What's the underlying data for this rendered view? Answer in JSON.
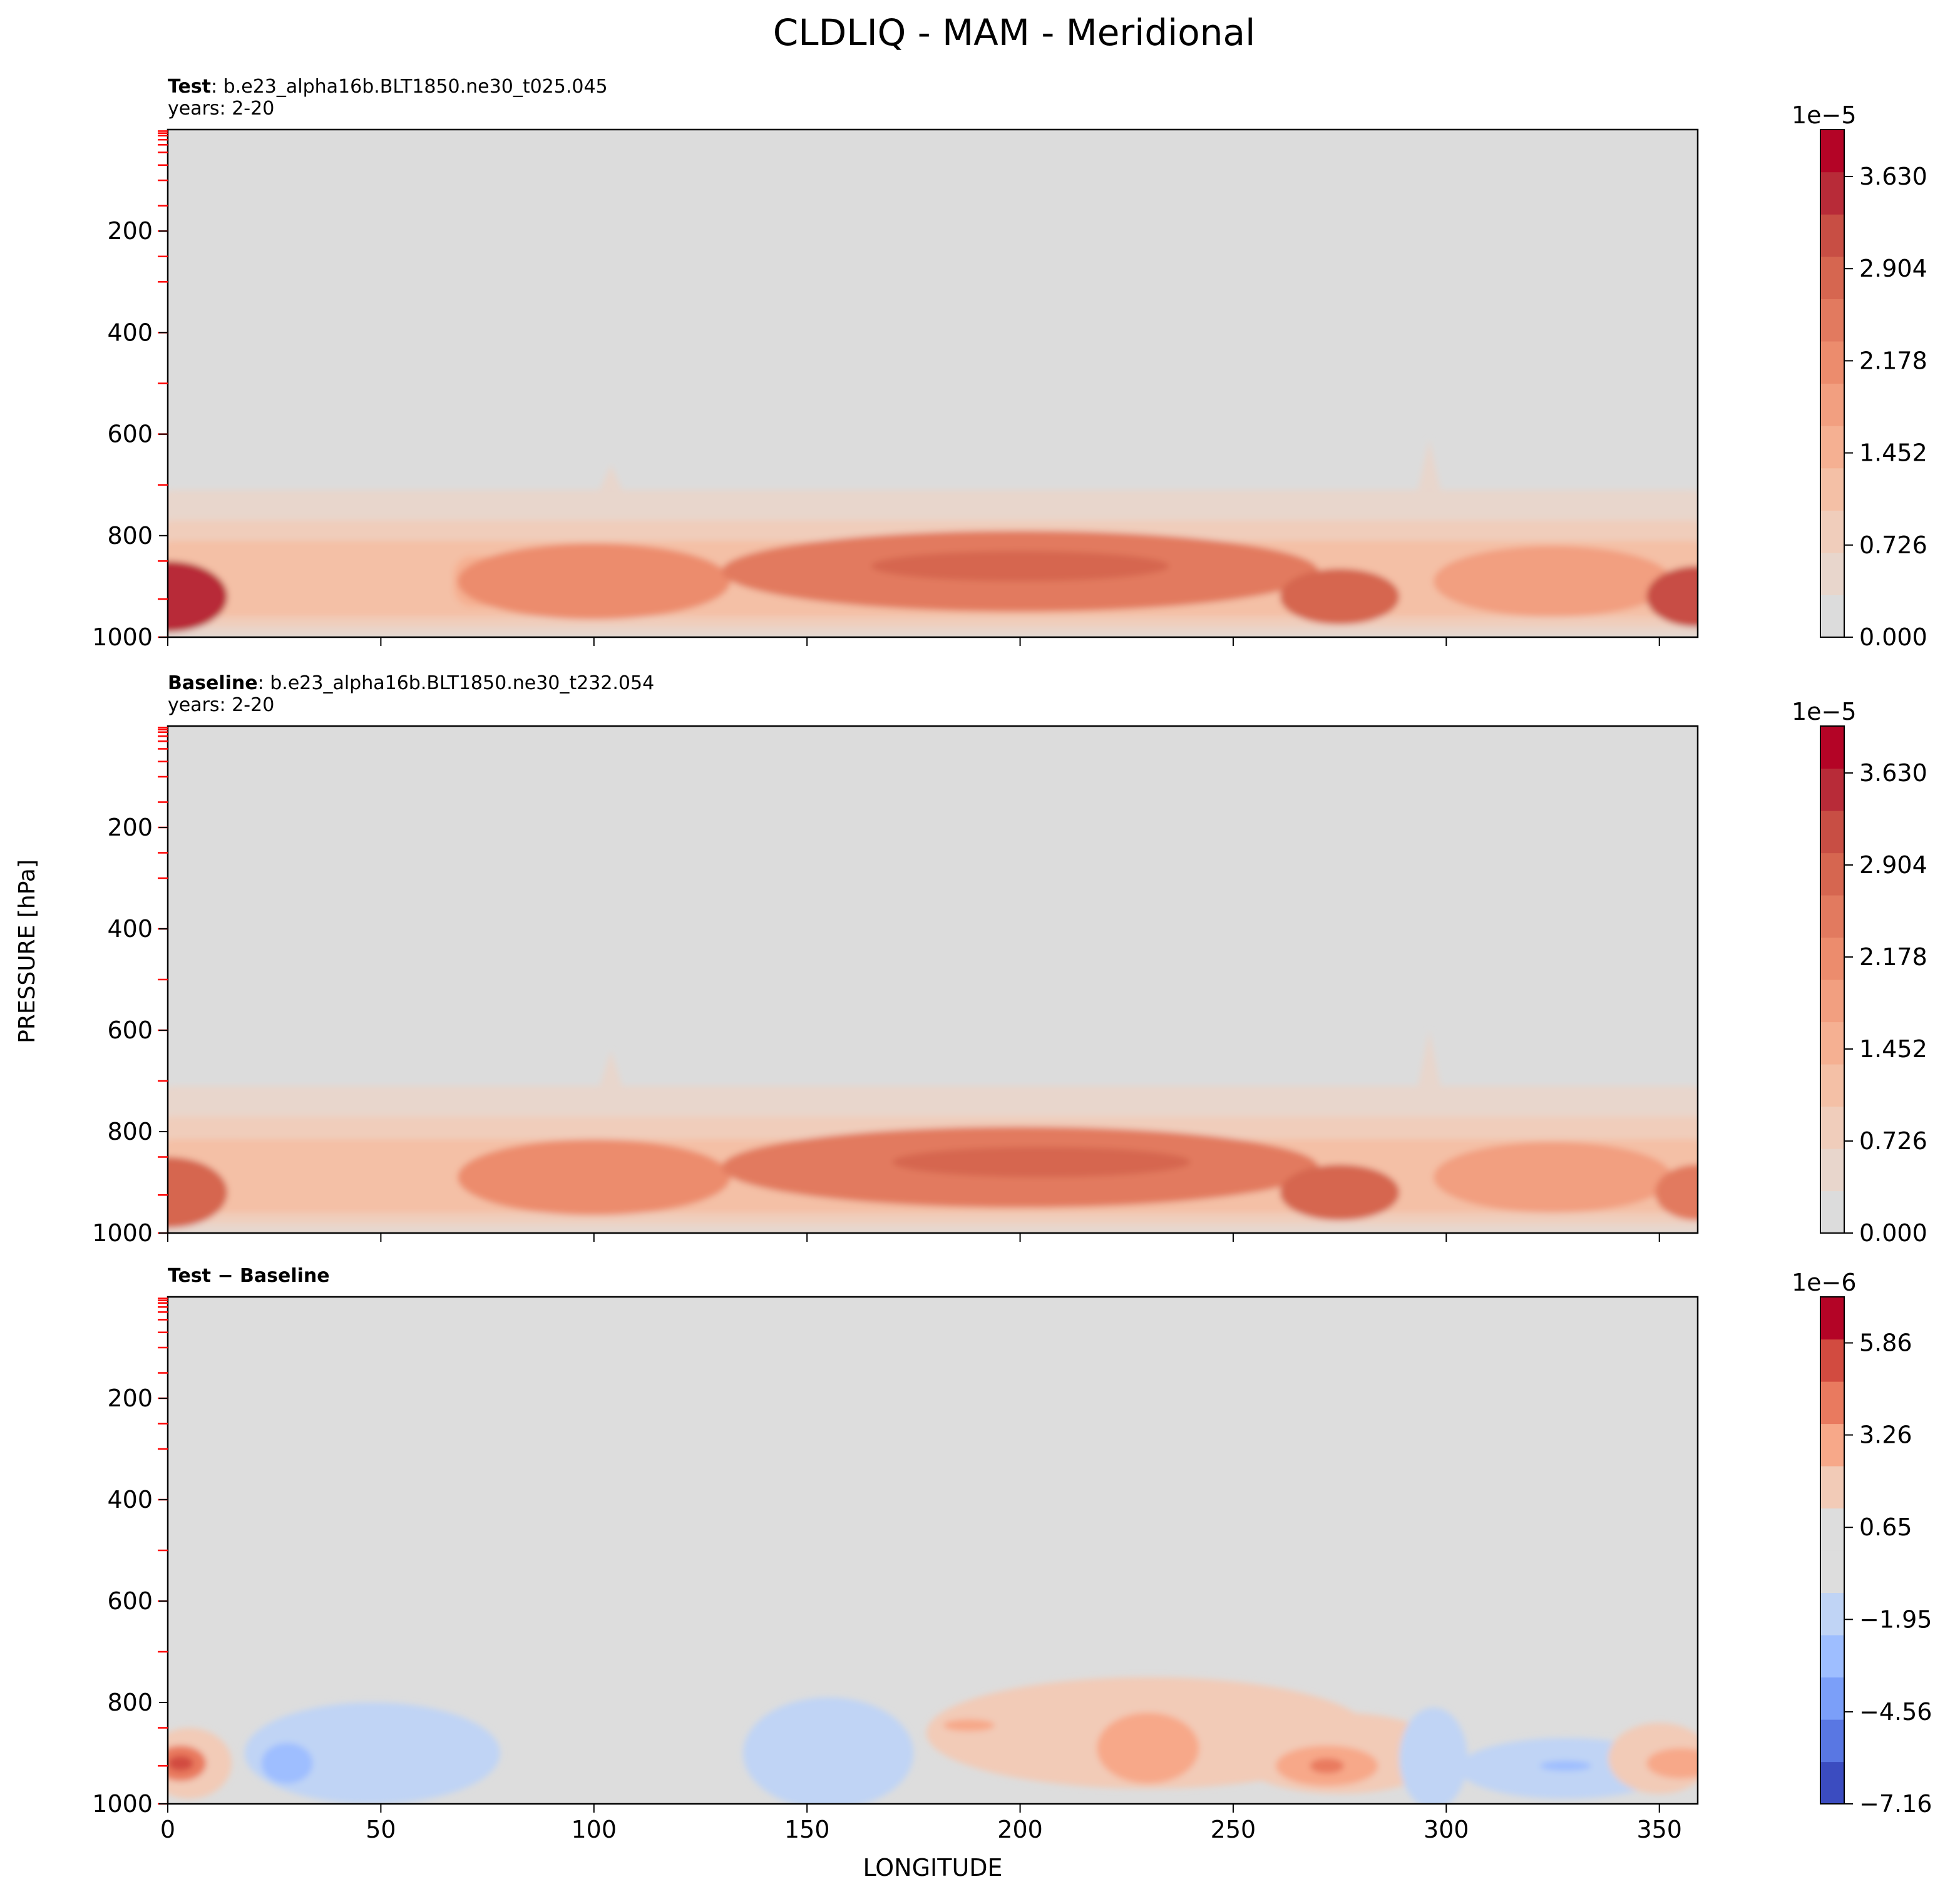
{
  "figure": {
    "title": "CLDLIQ - MAM - Meridional",
    "ylabel": "PRESSURE [hPa]",
    "xlabel": "LONGITUDE"
  },
  "chart_data": [
    {
      "type": "heatmap",
      "panel": "test",
      "title_bold": "Test",
      "title_rest": ": b.e23_alpha16b.BLT1850.ne30_t025.045",
      "subtitle": "years: 2-20",
      "xlim": [
        0,
        359
      ],
      "ylim": [
        1000,
        0
      ],
      "xticks": [
        0,
        50,
        100,
        150,
        200,
        250,
        300,
        350
      ],
      "yticks": [
        200,
        400,
        600,
        800,
        1000
      ],
      "colorbar": {
        "exponent": "1e−5",
        "vmin": 0.0,
        "vmax": 4.0,
        "ticks": [
          0.0,
          0.726,
          1.452,
          2.178,
          2.904,
          3.63
        ],
        "tick_labels": [
          "0.000",
          "0.726",
          "1.452",
          "2.178",
          "2.904",
          "3.630"
        ],
        "colors": [
          "#dcdcdc",
          "#e8d6cc",
          "#f0cdbb",
          "#f4c0a6",
          "#f5b092",
          "#f29f80",
          "#ec8c6d",
          "#e27a5f",
          "#d66650",
          "#c84e44",
          "#b82b38",
          "#b40426"
        ]
      },
      "field": {
        "bands": [
          {
            "lon": [
              0,
              359
            ],
            "p": [
              710,
              1000
            ],
            "level": 1
          },
          {
            "lon": [
              0,
              359
            ],
            "p": [
              770,
              980
            ],
            "level": 2
          },
          {
            "lon": [
              0,
              359
            ],
            "p": [
              810,
              960
            ],
            "level": 3
          },
          {
            "lon": [
              70,
              88
            ],
            "p": [
              840,
              940
            ],
            "level": 4
          }
        ],
        "blobs": [
          {
            "lon": 0,
            "p": 920,
            "rlon": 14,
            "rp": 70,
            "level": 10
          },
          {
            "lon": 100,
            "p": 890,
            "rlon": 32,
            "rp": 75,
            "level": 6
          },
          {
            "lon": 200,
            "p": 870,
            "rlon": 70,
            "rp": 80,
            "level": 7
          },
          {
            "lon": 200,
            "p": 860,
            "rlon": 35,
            "rp": 30,
            "level": 8
          },
          {
            "lon": 275,
            "p": 920,
            "rlon": 14,
            "rp": 55,
            "level": 8
          },
          {
            "lon": 325,
            "p": 890,
            "rlon": 28,
            "rp": 70,
            "level": 5
          },
          {
            "lon": 359,
            "p": 920,
            "rlon": 12,
            "rp": 60,
            "level": 9
          }
        ],
        "spikes": [
          {
            "lon": 104,
            "p_top": 660,
            "level": 1
          },
          {
            "lon": 296,
            "p_top": 610,
            "level": 1
          }
        ]
      }
    },
    {
      "type": "heatmap",
      "panel": "baseline",
      "title_bold": "Baseline",
      "title_rest": ": b.e23_alpha16b.BLT1850.ne30_t232.054",
      "subtitle": "years: 2-20",
      "xlim": [
        0,
        359
      ],
      "ylim": [
        1000,
        0
      ],
      "xticks": [
        0,
        50,
        100,
        150,
        200,
        250,
        300,
        350
      ],
      "yticks": [
        200,
        400,
        600,
        800,
        1000
      ],
      "colorbar": {
        "exponent": "1e−5",
        "vmin": 0.0,
        "vmax": 4.0,
        "ticks": [
          0.0,
          0.726,
          1.452,
          2.178,
          2.904,
          3.63
        ],
        "tick_labels": [
          "0.000",
          "0.726",
          "1.452",
          "2.178",
          "2.904",
          "3.630"
        ],
        "colors": [
          "#dcdcdc",
          "#e8d6cc",
          "#f0cdbb",
          "#f4c0a6",
          "#f5b092",
          "#f29f80",
          "#ec8c6d",
          "#e27a5f",
          "#d66650",
          "#c84e44",
          "#b82b38",
          "#b40426"
        ]
      },
      "field": {
        "bands": [
          {
            "lon": [
              0,
              359
            ],
            "p": [
              710,
              1000
            ],
            "level": 1
          },
          {
            "lon": [
              0,
              359
            ],
            "p": [
              770,
              980
            ],
            "level": 2
          },
          {
            "lon": [
              0,
              359
            ],
            "p": [
              815,
              960
            ],
            "level": 3
          }
        ],
        "blobs": [
          {
            "lon": 0,
            "p": 920,
            "rlon": 14,
            "rp": 70,
            "level": 8
          },
          {
            "lon": 100,
            "p": 890,
            "rlon": 32,
            "rp": 75,
            "level": 6
          },
          {
            "lon": 200,
            "p": 870,
            "rlon": 70,
            "rp": 80,
            "level": 7
          },
          {
            "lon": 205,
            "p": 860,
            "rlon": 35,
            "rp": 30,
            "level": 8
          },
          {
            "lon": 275,
            "p": 920,
            "rlon": 14,
            "rp": 55,
            "level": 8
          },
          {
            "lon": 325,
            "p": 890,
            "rlon": 28,
            "rp": 70,
            "level": 5
          },
          {
            "lon": 359,
            "p": 920,
            "rlon": 10,
            "rp": 55,
            "level": 7
          }
        ],
        "spikes": [
          {
            "lon": 104,
            "p_top": 640,
            "level": 1
          },
          {
            "lon": 296,
            "p_top": 600,
            "level": 1
          }
        ]
      }
    },
    {
      "type": "heatmap",
      "panel": "difference",
      "title_bold": "Test − Baseline",
      "title_rest": "",
      "subtitle": "",
      "xlim": [
        0,
        359
      ],
      "ylim": [
        1000,
        0
      ],
      "xticks": [
        0,
        50,
        100,
        150,
        200,
        250,
        300,
        350
      ],
      "yticks": [
        200,
        400,
        600,
        800,
        1000
      ],
      "colorbar": {
        "exponent": "1e−6",
        "vmin": -7.16,
        "vmax": 7.16,
        "ticks": [
          -7.16,
          -4.56,
          -1.95,
          0.65,
          3.26,
          5.86
        ],
        "tick_labels": [
          "−7.16",
          "−4.56",
          "−1.95",
          "0.65",
          "3.26",
          "5.86"
        ],
        "colors": [
          "#3b4cc0",
          "#5977e3",
          "#7b9ff9",
          "#9ebeff",
          "#c0d4f5",
          "#dddddd",
          "#dddddd",
          "#f2cbb7",
          "#f7a889",
          "#e97a5f",
          "#d24b40",
          "#b40426"
        ]
      },
      "field": {
        "background_level": 5,
        "blobs": [
          {
            "lon": 5,
            "p": 920,
            "rlon": 10,
            "rp": 70,
            "level": 7
          },
          {
            "lon": 3,
            "p": 920,
            "rlon": 6,
            "rp": 35,
            "level": 9
          },
          {
            "lon": 3,
            "p": 920,
            "rlon": 3,
            "rp": 15,
            "level": 10
          },
          {
            "lon": 48,
            "p": 900,
            "rlon": 30,
            "rp": 100,
            "level": 4
          },
          {
            "lon": 28,
            "p": 920,
            "rlon": 6,
            "rp": 40,
            "level": 3
          },
          {
            "lon": 155,
            "p": 900,
            "rlon": 20,
            "rp": 110,
            "level": 4
          },
          {
            "lon": 230,
            "p": 860,
            "rlon": 52,
            "rp": 110,
            "level": 7
          },
          {
            "lon": 230,
            "p": 890,
            "rlon": 12,
            "rp": 70,
            "level": 8
          },
          {
            "lon": 188,
            "p": 845,
            "rlon": 6,
            "rp": 12,
            "level": 8
          },
          {
            "lon": 275,
            "p": 900,
            "rlon": 25,
            "rp": 80,
            "level": 7
          },
          {
            "lon": 272,
            "p": 925,
            "rlon": 12,
            "rp": 40,
            "level": 8
          },
          {
            "lon": 272,
            "p": 925,
            "rlon": 4,
            "rp": 15,
            "level": 9
          },
          {
            "lon": 297,
            "p": 910,
            "rlon": 8,
            "rp": 100,
            "level": 4
          },
          {
            "lon": 328,
            "p": 930,
            "rlon": 25,
            "rp": 60,
            "level": 4
          },
          {
            "lon": 328,
            "p": 925,
            "rlon": 6,
            "rp": 10,
            "level": 3
          },
          {
            "lon": 350,
            "p": 910,
            "rlon": 12,
            "rp": 70,
            "level": 7
          },
          {
            "lon": 355,
            "p": 920,
            "rlon": 8,
            "rp": 30,
            "level": 8
          }
        ]
      }
    }
  ]
}
